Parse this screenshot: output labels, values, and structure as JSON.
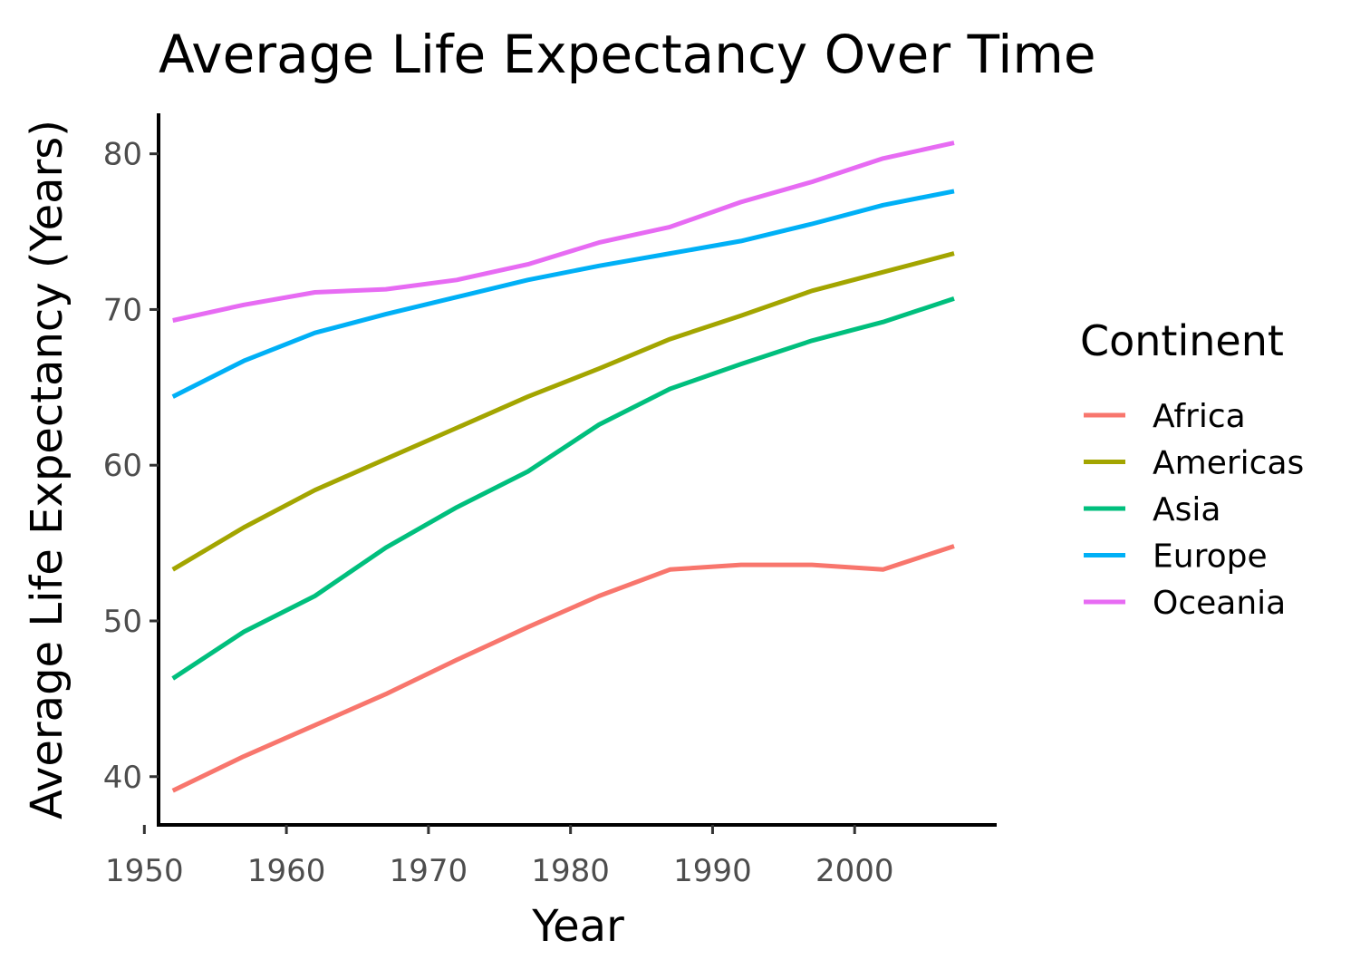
{
  "chart_data": {
    "type": "line",
    "title": "Average Life Expectancy Over Time",
    "xlabel": "Year",
    "ylabel": "Average Life Expectancy (Years)",
    "xlim": [
      1951,
      2010
    ],
    "ylim": [
      36.9,
      82.6
    ],
    "xticks": [
      1950,
      1960,
      1970,
      1980,
      1990,
      2000
    ],
    "yticks": [
      40,
      50,
      60,
      70,
      80
    ],
    "x": [
      1952,
      1957,
      1962,
      1967,
      1972,
      1977,
      1982,
      1987,
      1992,
      1997,
      2002,
      2007
    ],
    "grid": false,
    "legend": {
      "title": "Continent",
      "position": "right"
    },
    "series": [
      {
        "name": "Africa",
        "color": "#F8766D",
        "values": [
          39.1,
          41.3,
          43.3,
          45.3,
          47.5,
          49.6,
          51.6,
          53.3,
          53.6,
          53.6,
          53.3,
          54.8
        ]
      },
      {
        "name": "Americas",
        "color": "#A3A500",
        "values": [
          53.3,
          56.0,
          58.4,
          60.4,
          62.4,
          64.4,
          66.2,
          68.1,
          69.6,
          71.2,
          72.4,
          73.6
        ]
      },
      {
        "name": "Asia",
        "color": "#00BF7D",
        "values": [
          46.3,
          49.3,
          51.6,
          54.7,
          57.3,
          59.6,
          62.6,
          64.9,
          66.5,
          68.0,
          69.2,
          70.7
        ]
      },
      {
        "name": "Europe",
        "color": "#00B0F6",
        "values": [
          64.4,
          66.7,
          68.5,
          69.7,
          70.8,
          71.9,
          72.8,
          73.6,
          74.4,
          75.5,
          76.7,
          77.6
        ]
      },
      {
        "name": "Oceania",
        "color": "#E76BF3",
        "values": [
          69.3,
          70.3,
          71.1,
          71.3,
          71.9,
          72.9,
          74.3,
          75.3,
          76.9,
          78.2,
          79.7,
          80.7
        ]
      }
    ]
  }
}
